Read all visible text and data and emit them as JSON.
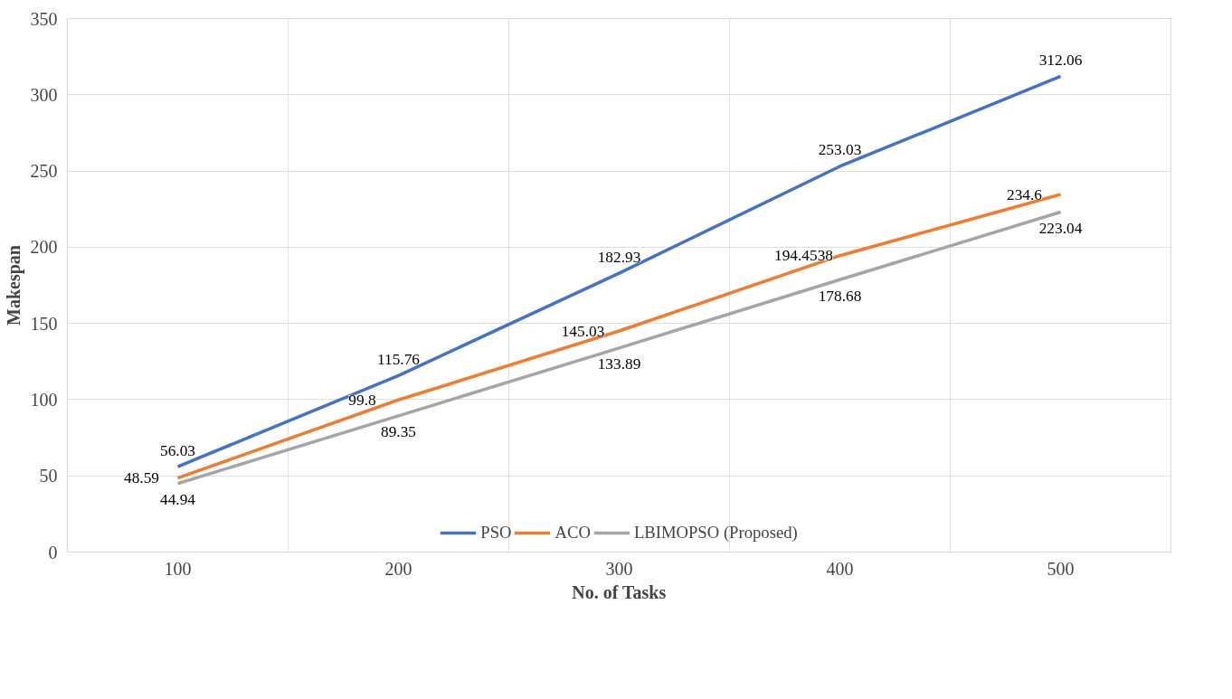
{
  "chart_data": {
    "type": "line",
    "xlabel": "No. of Tasks",
    "ylabel": "Makespan",
    "categories": [
      "100",
      "200",
      "300",
      "400",
      "500"
    ],
    "series": [
      {
        "name": "PSO",
        "color": "#4472c4",
        "values": [
          56.03,
          115.76,
          182.93,
          253.03,
          312.06
        ]
      },
      {
        "name": "ACO",
        "color": "#ed7d31",
        "values": [
          48.59,
          99.8,
          145.03,
          194.4538,
          234.6
        ]
      },
      {
        "name": "LBIMOPSO (Proposed)",
        "color": "#a5a5a5",
        "values": [
          44.94,
          89.35,
          133.89,
          178.68,
          223.04
        ]
      }
    ],
    "ylim": [
      0,
      350
    ],
    "yticks": [
      0,
      50,
      100,
      150,
      200,
      250,
      300,
      350
    ],
    "grid": true,
    "legend": "bottom",
    "data_labels": true,
    "marker": "none",
    "line_style": "solid"
  }
}
